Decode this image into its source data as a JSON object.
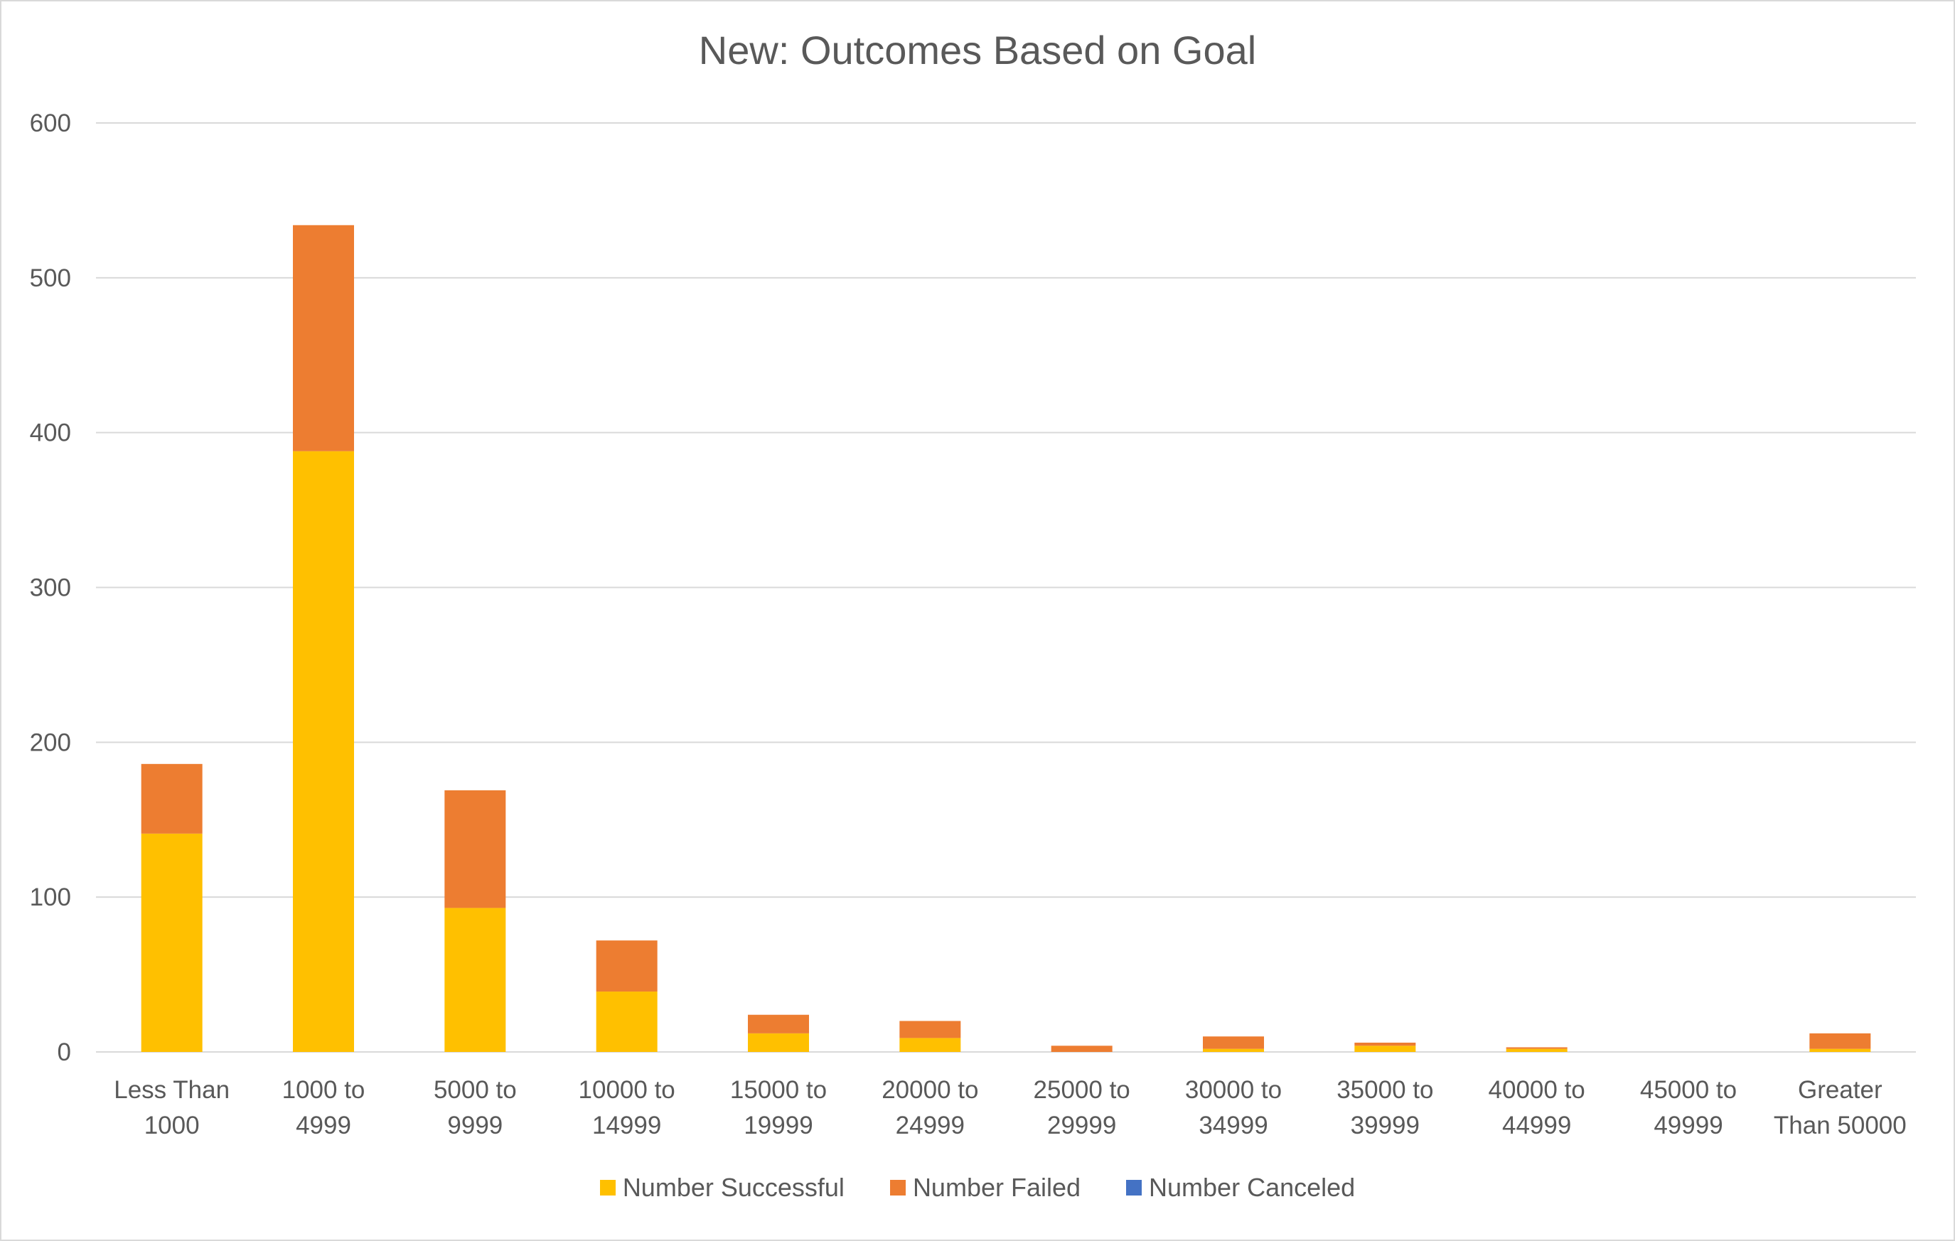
{
  "chart_data": {
    "type": "bar",
    "stacked": true,
    "title": "New: Outcomes Based on Goal",
    "categories": [
      [
        "Less Than",
        "1000"
      ],
      [
        "1000 to",
        "4999"
      ],
      [
        "5000 to",
        "9999"
      ],
      [
        "10000 to",
        "14999"
      ],
      [
        "15000 to",
        "19999"
      ],
      [
        "20000 to",
        "24999"
      ],
      [
        "25000 to",
        "29999"
      ],
      [
        "30000 to",
        "34999"
      ],
      [
        "35000 to",
        "39999"
      ],
      [
        "40000 to",
        "44999"
      ],
      [
        "45000 to",
        "49999"
      ],
      [
        "Greater",
        "Than 50000"
      ]
    ],
    "series": [
      {
        "name": "Number Successful",
        "color": "#FFC000",
        "values": [
          141,
          388,
          93,
          39,
          12,
          9,
          0,
          2,
          4,
          2,
          0,
          2
        ]
      },
      {
        "name": "Number Failed",
        "color": "#ED7D31",
        "values": [
          45,
          146,
          76,
          33,
          12,
          11,
          4,
          8,
          2,
          1,
          0,
          10
        ]
      },
      {
        "name": "Number Canceled",
        "color": "#4472C4",
        "values": [
          0,
          0,
          0,
          0,
          0,
          0,
          0,
          0,
          0,
          0,
          0,
          0
        ]
      }
    ],
    "ylim": [
      0,
      600
    ],
    "yticks": [
      0,
      100,
      200,
      300,
      400,
      500,
      600
    ],
    "grid": true,
    "legend_position": "bottom"
  }
}
